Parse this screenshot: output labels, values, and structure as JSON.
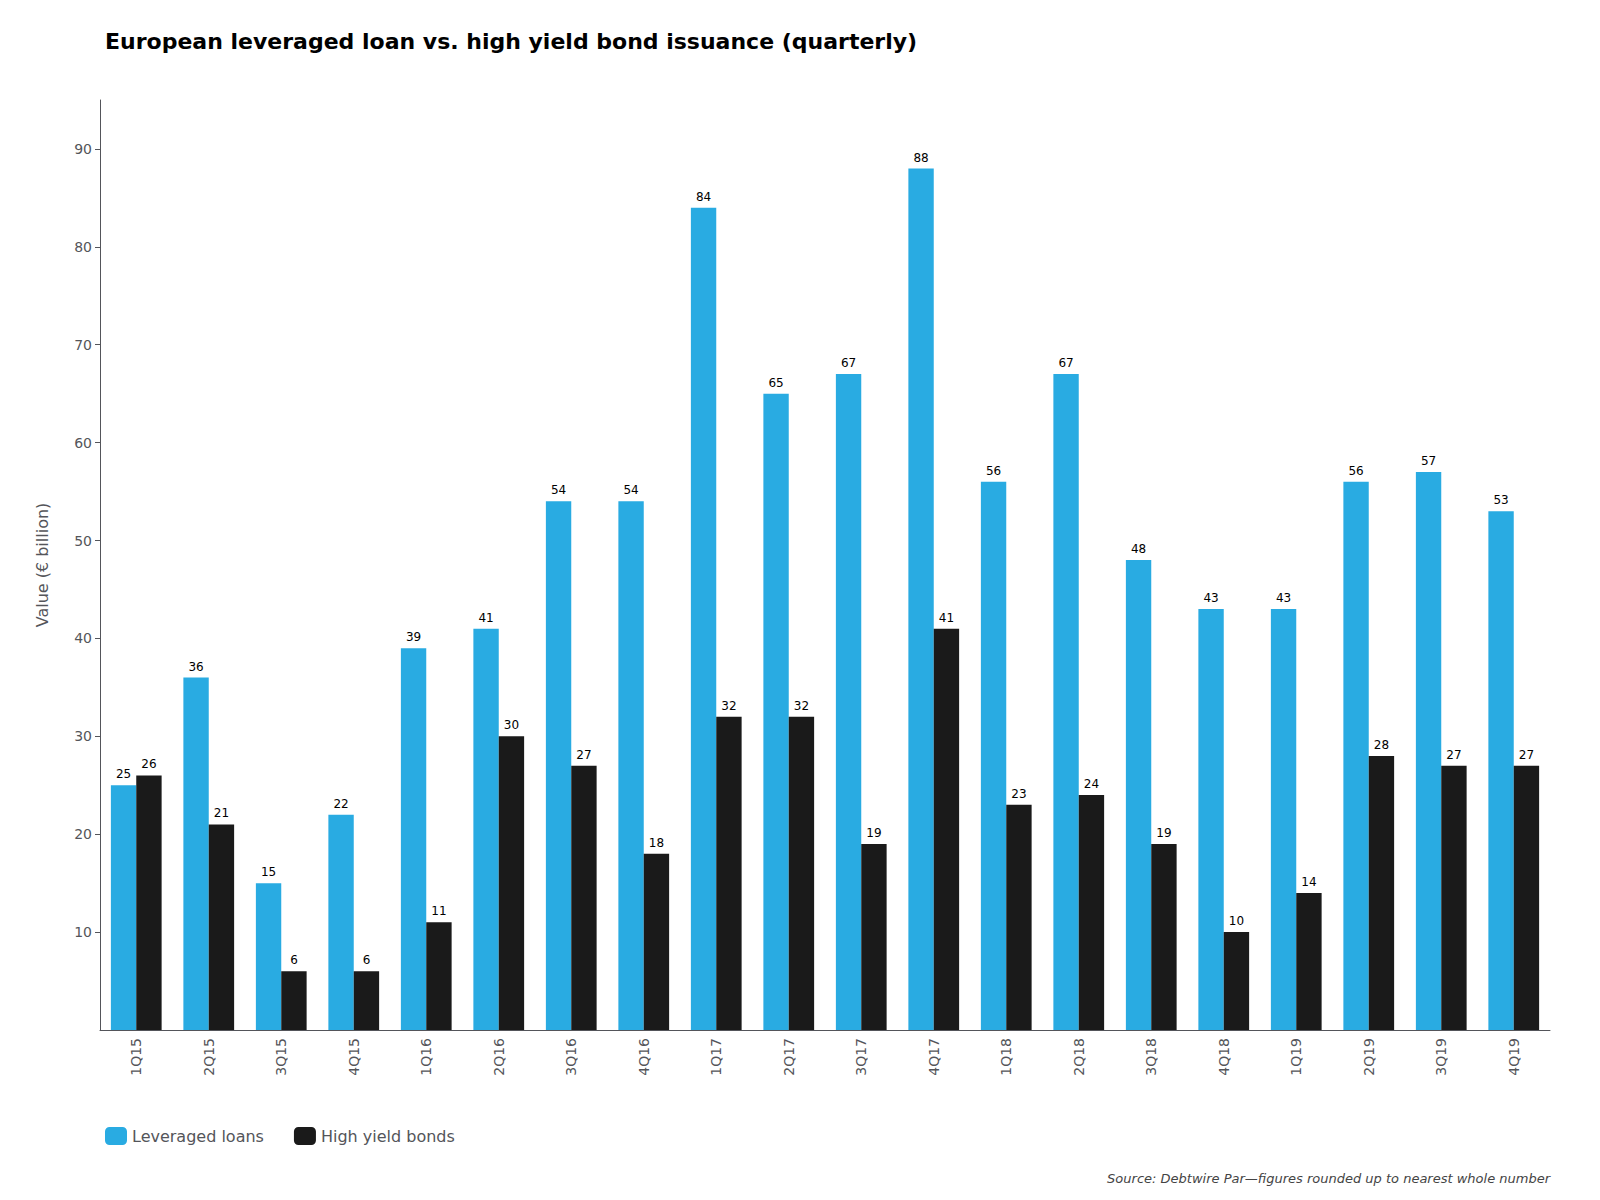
{
  "chart_data": {
    "type": "bar",
    "title": "European leveraged loan vs. high yield bond issuance (quarterly)",
    "ylabel": "Value (€ billion)",
    "source": "Source: Debtwire Par—figures rounded up to nearest whole number",
    "categories": [
      "1Q15",
      "2Q15",
      "3Q15",
      "4Q15",
      "1Q16",
      "2Q16",
      "3Q16",
      "4Q16",
      "1Q17",
      "2Q17",
      "3Q17",
      "4Q17",
      "1Q18",
      "2Q18",
      "3Q18",
      "4Q18",
      "1Q19",
      "2Q19",
      "3Q19",
      "4Q19"
    ],
    "series": [
      {
        "name": "Leveraged loans",
        "color": "#29ABE2",
        "values": [
          25,
          36,
          15,
          22,
          39,
          41,
          54,
          54,
          84,
          65,
          67,
          88,
          56,
          67,
          48,
          43,
          43,
          56,
          57,
          53
        ]
      },
      {
        "name": "High yield bonds",
        "color": "#1a1a1a",
        "values": [
          26,
          21,
          6,
          6,
          11,
          30,
          27,
          18,
          32,
          32,
          19,
          41,
          23,
          24,
          19,
          10,
          14,
          28,
          27,
          27
        ]
      }
    ],
    "ylim": [
      0,
      95
    ],
    "yticks": [
      10,
      20,
      30,
      40,
      50,
      60,
      70,
      80,
      90
    ],
    "grid": false,
    "legend": "lower left",
    "data_labels": true
  }
}
